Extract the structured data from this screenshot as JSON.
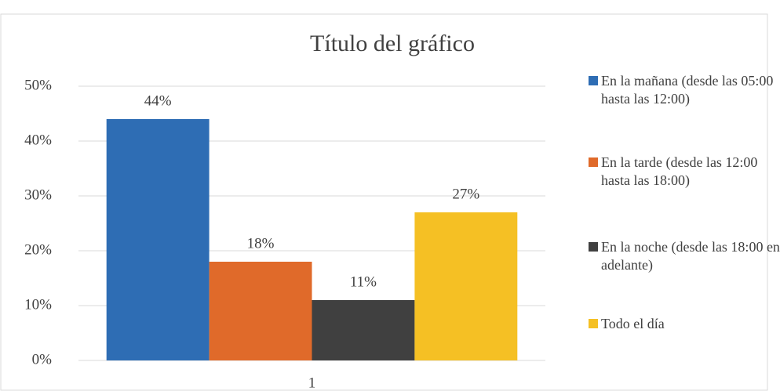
{
  "chart_data": {
    "type": "bar",
    "title": "Título del gráfico",
    "categories": [
      "1"
    ],
    "series": [
      {
        "name": "En la mañana (desde las 05:00 hasta las 12:00)",
        "color": "#2e6db4",
        "values": [
          44
        ],
        "value_labels": [
          "44%"
        ]
      },
      {
        "name": "En la tarde (desde las 12:00 hasta las 18:00)",
        "color": "#e06a2a",
        "values": [
          18
        ],
        "value_labels": [
          "18%"
        ]
      },
      {
        "name": "En la noche (desde las 18:00 en adelante)",
        "color": "#404040",
        "values": [
          11
        ],
        "value_labels": [
          "11%"
        ]
      },
      {
        "name": "Todo el día",
        "color": "#f5c024",
        "values": [
          27
        ],
        "value_labels": [
          "27%"
        ]
      }
    ],
    "ylim": [
      0,
      50
    ],
    "yticks": [
      {
        "value": 0,
        "label": "0%"
      },
      {
        "value": 10,
        "label": "10%"
      },
      {
        "value": 20,
        "label": "20%"
      },
      {
        "value": 30,
        "label": "30%"
      },
      {
        "value": 40,
        "label": "40%"
      },
      {
        "value": 50,
        "label": "50%"
      }
    ],
    "grid": true,
    "legend": "right"
  }
}
